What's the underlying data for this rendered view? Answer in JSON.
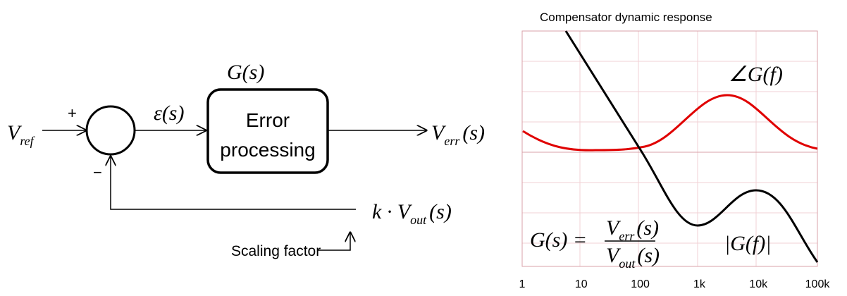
{
  "diagram": {
    "input": "V",
    "input_sub": "ref",
    "plus": "+",
    "minus": "−",
    "error": "ε(s)",
    "block_title": "G(s)",
    "block_line1": "Error",
    "block_line2": "processing",
    "output": "V",
    "output_sub": "err",
    "output_arg": "(s)",
    "feedback": "k · V",
    "feedback_sub": "out",
    "feedback_arg": "(s)",
    "scaling": "Scaling factor"
  },
  "chart": {
    "title": "Compensator dynamic response",
    "phase_label": "∠G(f)",
    "magnitude_label": "|G(f)|",
    "formula_lhs": "G(s) =",
    "formula_num": "V",
    "formula_num_sub": "err",
    "formula_num_arg": "(s)",
    "formula_den": "V",
    "formula_den_sub": "out",
    "formula_den_arg": "(s)",
    "xticks": [
      "1",
      "10",
      "100",
      "1k",
      "10k",
      "100k"
    ]
  }
}
